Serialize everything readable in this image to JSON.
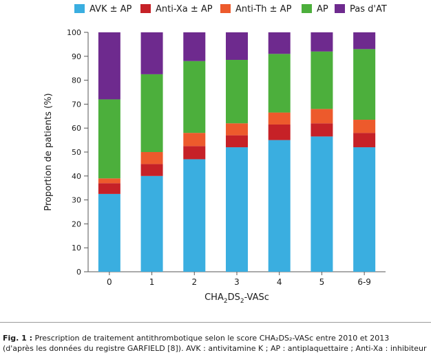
{
  "chart_data": {
    "type": "bar",
    "stacked": true,
    "categories": [
      "0",
      "1",
      "2",
      "3",
      "4",
      "5",
      "6-9"
    ],
    "series": [
      {
        "name": "AVK ± AP",
        "color": "#3aaee0",
        "values": [
          32.5,
          40,
          47,
          52,
          55,
          56.5,
          52
        ]
      },
      {
        "name": "Anti-Xa ± AP",
        "color": "#c62127",
        "values": [
          4.5,
          5,
          5.5,
          5,
          6.5,
          5.5,
          6
        ]
      },
      {
        "name": "Anti-Th ± AP",
        "color": "#ed5a2c",
        "values": [
          2,
          5,
          5.5,
          5,
          5,
          6,
          5.5
        ]
      },
      {
        "name": "AP",
        "color": "#4caf3c",
        "values": [
          33,
          32.5,
          30,
          26.5,
          24.5,
          24,
          29.5
        ]
      },
      {
        "name": "Pas d'AT",
        "color": "#6e2a8e",
        "values": [
          28,
          17.5,
          12,
          11.5,
          9,
          8,
          7
        ]
      }
    ],
    "ylabel": "Proportion de patients (%)",
    "ylim": [
      0,
      100
    ],
    "yticks": [
      "0",
      "10",
      "20",
      "30",
      "40",
      "50",
      "60",
      "70",
      "80",
      "90",
      "100"
    ],
    "grid": false,
    "legend_position": "top"
  },
  "xlabel": {
    "base1": "CHA",
    "sub1": "2",
    "base2": "DS",
    "sub2": "2",
    "base3": "-VASc"
  },
  "caption": {
    "label": "Fig. 1 :",
    "line1": " Prescription de traitement antithrombotique selon le score CHA₂DS₂-VASc entre 2010 et 2013",
    "line2": "(d'après les données du registre GARFIELD [8]). AVK : antivitamine K ; AP : antiplaquettaire ; Anti-Xa : inhibiteur"
  }
}
